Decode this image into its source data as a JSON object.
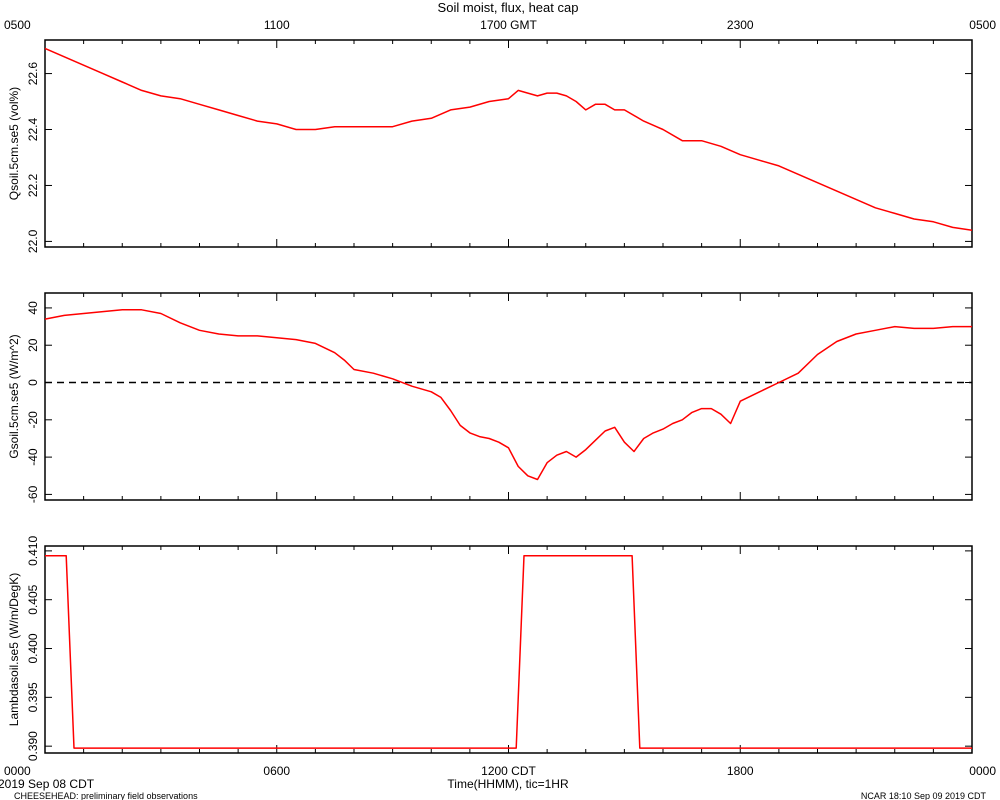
{
  "title": "Soil moist, flux, heat cap",
  "top_axis": {
    "ticks": [
      "0500",
      "1100",
      "1700 GMT",
      "2300",
      "0500"
    ]
  },
  "bottom_axis": {
    "ticks": [
      "0000",
      "0600",
      "1200 CDT",
      "1800",
      "0000"
    ],
    "label": "Time(HHMM), tic=1HR",
    "date_label": "2019 Sep 08 CDT"
  },
  "footer": {
    "left": "CHEESEHEAD: preliminary field observations",
    "right": "NCAR 18:10 Sep 09 2019 CDT"
  },
  "colors": {
    "series": "#ff0000",
    "axes": "#000000",
    "zero_line": "#000000"
  },
  "chart_data": [
    {
      "type": "line",
      "ylabel": "Qsoil.5cm.se5 (vol%)",
      "ylim": [
        21.98,
        22.72
      ],
      "yticks": [
        22.0,
        22.2,
        22.4,
        22.6
      ],
      "ytick_labels": [
        "22.0",
        "22.2",
        "22.4",
        "22.6"
      ],
      "xlim": [
        0,
        24
      ],
      "x": [
        0,
        0.5,
        1,
        1.5,
        2,
        2.5,
        3,
        3.5,
        4,
        4.5,
        5,
        5.5,
        6,
        6.5,
        7,
        7.5,
        8,
        8.5,
        9,
        9.5,
        10,
        10.5,
        11,
        11.5,
        12,
        12.25,
        12.5,
        12.75,
        13,
        13.25,
        13.5,
        13.75,
        14,
        14.25,
        14.5,
        14.75,
        15,
        15.5,
        16,
        16.5,
        17,
        17.5,
        18,
        18.5,
        19,
        19.5,
        20,
        20.5,
        21,
        21.5,
        22,
        22.5,
        23,
        23.5,
        24
      ],
      "y": [
        22.69,
        22.66,
        22.63,
        22.6,
        22.57,
        22.54,
        22.52,
        22.51,
        22.49,
        22.47,
        22.45,
        22.43,
        22.42,
        22.4,
        22.4,
        22.41,
        22.41,
        22.41,
        22.41,
        22.43,
        22.44,
        22.47,
        22.48,
        22.5,
        22.51,
        22.54,
        22.53,
        22.52,
        22.53,
        22.53,
        22.52,
        22.5,
        22.47,
        22.49,
        22.49,
        22.47,
        22.47,
        22.43,
        22.4,
        22.36,
        22.36,
        22.34,
        22.31,
        22.29,
        22.27,
        22.24,
        22.21,
        22.18,
        22.15,
        22.12,
        22.1,
        22.08,
        22.07,
        22.05,
        22.04
      ]
    },
    {
      "type": "line",
      "ylabel": "Gsoil.5cm.se5 (W/m^2)",
      "ylim": [
        -63,
        48
      ],
      "yticks": [
        -60,
        -40,
        -20,
        0,
        20,
        40
      ],
      "ytick_labels": [
        "-60",
        "-40",
        "-20",
        "0",
        "20",
        "40"
      ],
      "zero_line": true,
      "xlim": [
        0,
        24
      ],
      "x": [
        0,
        0.5,
        1,
        1.5,
        2,
        2.5,
        3,
        3.5,
        4,
        4.5,
        5,
        5.5,
        6,
        6.5,
        7,
        7.5,
        7.75,
        8,
        8.5,
        9,
        9.5,
        10,
        10.25,
        10.5,
        10.75,
        11,
        11.25,
        11.5,
        11.75,
        12,
        12.25,
        12.5,
        12.75,
        13,
        13.25,
        13.5,
        13.75,
        14,
        14.25,
        14.5,
        14.75,
        15,
        15.25,
        15.5,
        15.75,
        16,
        16.25,
        16.5,
        16.75,
        17,
        17.25,
        17.5,
        17.75,
        18,
        18.5,
        19,
        19.5,
        20,
        20.5,
        21,
        21.5,
        22,
        22.5,
        23,
        23.5,
        24
      ],
      "y": [
        34,
        36,
        37,
        38,
        39,
        39,
        37,
        32,
        28,
        26,
        25,
        25,
        24,
        23,
        21,
        16,
        12,
        7,
        5,
        2,
        -2,
        -5,
        -8,
        -15,
        -23,
        -27,
        -29,
        -30,
        -32,
        -35,
        -45,
        -50,
        -52,
        -43,
        -39,
        -37,
        -40,
        -36,
        -31,
        -26,
        -24,
        -32,
        -37,
        -30,
        -27,
        -25,
        -22,
        -20,
        -16,
        -14,
        -14,
        -17,
        -22,
        -10,
        -5,
        0,
        5,
        15,
        22,
        26,
        28,
        30,
        29,
        29,
        30,
        30
      ]
    },
    {
      "type": "line",
      "ylabel": "Lambdasoil.se5 (W/m/DegK)",
      "ylim": [
        0.3893,
        0.4105
      ],
      "yticks": [
        0.39,
        0.395,
        0.4,
        0.405,
        0.41
      ],
      "ytick_labels": [
        "0.390",
        "0.395",
        "0.400",
        "0.405",
        "0.410"
      ],
      "xlim": [
        0,
        24
      ],
      "x": [
        0,
        0.55,
        0.75,
        12.2,
        12.4,
        15.2,
        15.4,
        24
      ],
      "y": [
        0.4095,
        0.4095,
        0.3898,
        0.3898,
        0.4095,
        0.4095,
        0.3898,
        0.3898
      ]
    }
  ]
}
